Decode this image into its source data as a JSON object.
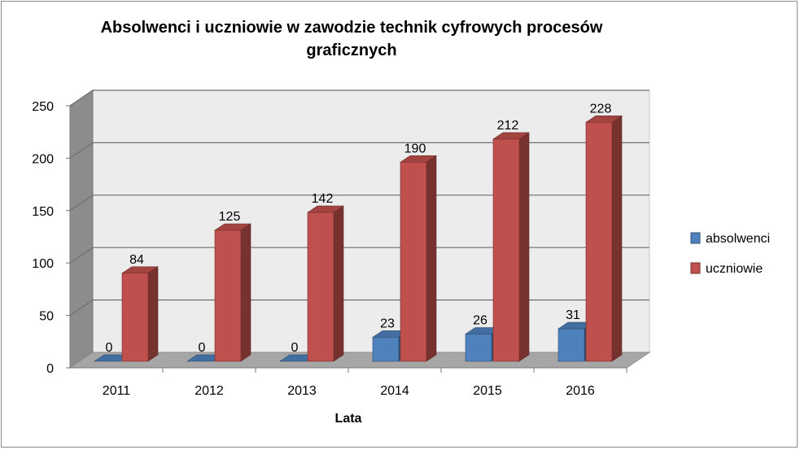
{
  "chart_data": {
    "type": "bar",
    "title": "Absolwenci i uczniowie w zawodzie  technik cyfrowych  procesów graficznych",
    "xlabel": "Lata",
    "ylabel": "",
    "categories": [
      "2011",
      "2012",
      "2013",
      "2014",
      "2015",
      "2016"
    ],
    "series": [
      {
        "name": "absolwenci",
        "values": [
          0,
          0,
          0,
          23,
          26,
          31
        ],
        "color": "#4f81bd"
      },
      {
        "name": "uczniowie",
        "values": [
          84,
          125,
          142,
          190,
          212,
          228
        ],
        "color": "#c0504d"
      }
    ],
    "ylim": [
      0,
      250
    ],
    "yticks": [
      "0",
      "50",
      "100",
      "150",
      "200",
      "250"
    ],
    "grid": true,
    "legend_position": "right",
    "style": "3d-clustered-column"
  }
}
